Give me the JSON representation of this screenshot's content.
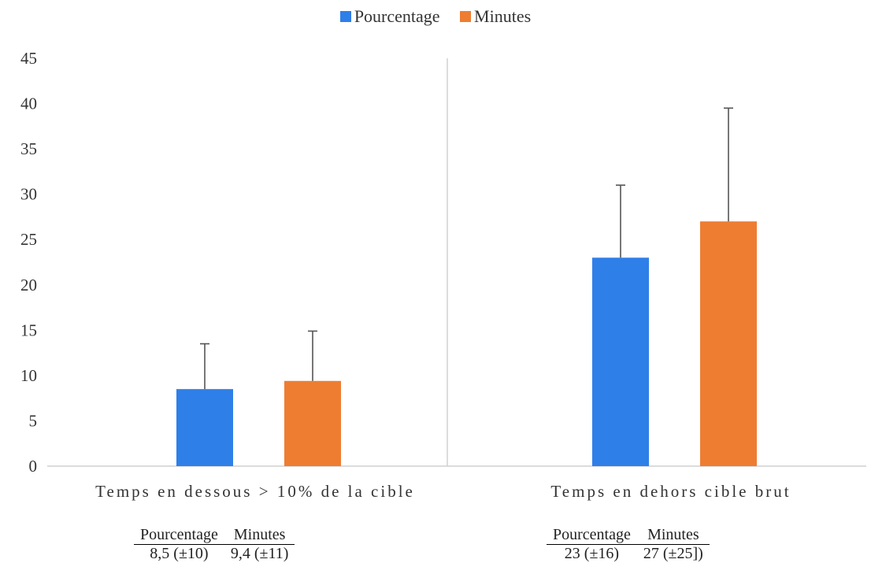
{
  "legend": [
    {
      "name": "Pourcentage",
      "color": "#2f7fe8"
    },
    {
      "name": "Minutes",
      "color": "#ee7d32"
    }
  ],
  "chart_data": {
    "type": "bar",
    "title": "",
    "xlabel": "",
    "ylabel": "",
    "categories": [
      "Temps en dessous > 10% de la cible",
      "Temps en dehors cible brut"
    ],
    "series": [
      {
        "name": "Pourcentage",
        "color": "#2f7fe8",
        "values": [
          8.5,
          23
        ],
        "error_plus": [
          5.0,
          8.0
        ]
      },
      {
        "name": "Minutes",
        "color": "#ee7d32",
        "values": [
          9.4,
          27
        ],
        "error_plus": [
          5.5,
          12.5
        ]
      }
    ],
    "ylim": [
      0,
      45
    ],
    "yticks": [
      0,
      5,
      10,
      15,
      20,
      25,
      30,
      35,
      40,
      45
    ],
    "legend_position": "top-center",
    "grid": false
  },
  "tables": [
    {
      "headers": [
        "Pourcentage",
        "Minutes"
      ],
      "values": [
        "8,5 (±10)",
        "9,4 (±11)"
      ]
    },
    {
      "headers": [
        "Pourcentage",
        "Minutes"
      ],
      "values": [
        "23 (±16)",
        "27 (±25])"
      ]
    }
  ]
}
